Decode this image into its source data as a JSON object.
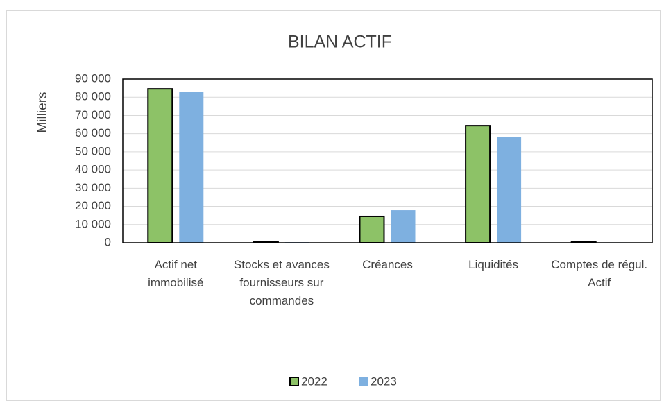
{
  "chart_data": {
    "type": "bar",
    "title": "BILAN ACTIF",
    "y_label": "Milliers",
    "categories": [
      "Actif net immobilisé",
      "Stocks et avances fournisseurs sur commandes",
      "Créances",
      "Liquidités",
      "Comptes de régul. Actif"
    ],
    "series": [
      {
        "name": "2022",
        "color": "#8dc267",
        "edgecolor": "#000000",
        "values": [
          84600,
          700,
          14500,
          64400,
          500
        ]
      },
      {
        "name": "2023",
        "color": "#7eb0e0",
        "values": [
          83000,
          300,
          17900,
          58300,
          200
        ]
      }
    ],
    "ylim": [
      0,
      90000
    ],
    "yticks": [
      {
        "value": 0,
        "label": "0"
      },
      {
        "value": 10000,
        "label": "10 000"
      },
      {
        "value": 20000,
        "label": "20 000"
      },
      {
        "value": 30000,
        "label": "30 000"
      },
      {
        "value": 40000,
        "label": "40 000"
      },
      {
        "value": 50000,
        "label": "50 000"
      },
      {
        "value": 60000,
        "label": "60 000"
      },
      {
        "value": 70000,
        "label": "70 000"
      },
      {
        "value": 80000,
        "label": "80 000"
      },
      {
        "value": 90000,
        "label": "90 000"
      }
    ],
    "grid": true,
    "legend": "bottom"
  }
}
